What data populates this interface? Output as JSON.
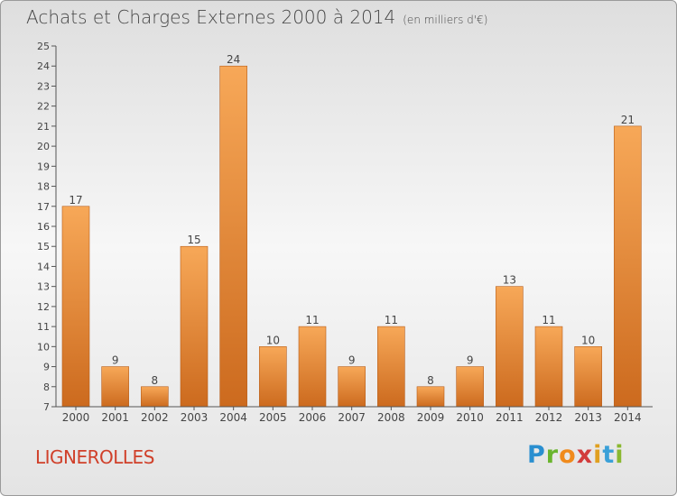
{
  "title": "Achats et Charges Externes 2000 à 2014",
  "unit": "(en milliers d'€)",
  "town": "LIGNEROLLES",
  "brand": [
    "P",
    "r",
    "o",
    "x",
    "i",
    "t",
    "i"
  ],
  "colors": {
    "bar_light": "#f6a555",
    "bar_dark": "#cf6b1e",
    "text": "#454545",
    "town": "#d0402a"
  },
  "chart_data": {
    "type": "bar",
    "title": "Achats et Charges Externes 2000 à 2014",
    "subtitle": "(en milliers d'€)",
    "categories": [
      "2000",
      "2001",
      "2002",
      "2003",
      "2004",
      "2005",
      "2006",
      "2007",
      "2008",
      "2009",
      "2010",
      "2011",
      "2012",
      "2013",
      "2014"
    ],
    "values": [
      17,
      9,
      8,
      15,
      24,
      10,
      11,
      9,
      11,
      8,
      9,
      13,
      11,
      10,
      21
    ],
    "ylim": [
      7,
      25
    ],
    "yticks": [
      7,
      8,
      9,
      10,
      11,
      12,
      13,
      14,
      15,
      16,
      17,
      18,
      19,
      20,
      21,
      22,
      23,
      24,
      25
    ],
    "ytick_labels": [
      "7",
      "8",
      "9",
      "10",
      "11",
      "12",
      "13",
      "14",
      "15",
      "16",
      "17",
      "18",
      "19",
      "20",
      "21",
      "22",
      "23",
      "24",
      "25"
    ],
    "grid": false,
    "legend": "none"
  }
}
